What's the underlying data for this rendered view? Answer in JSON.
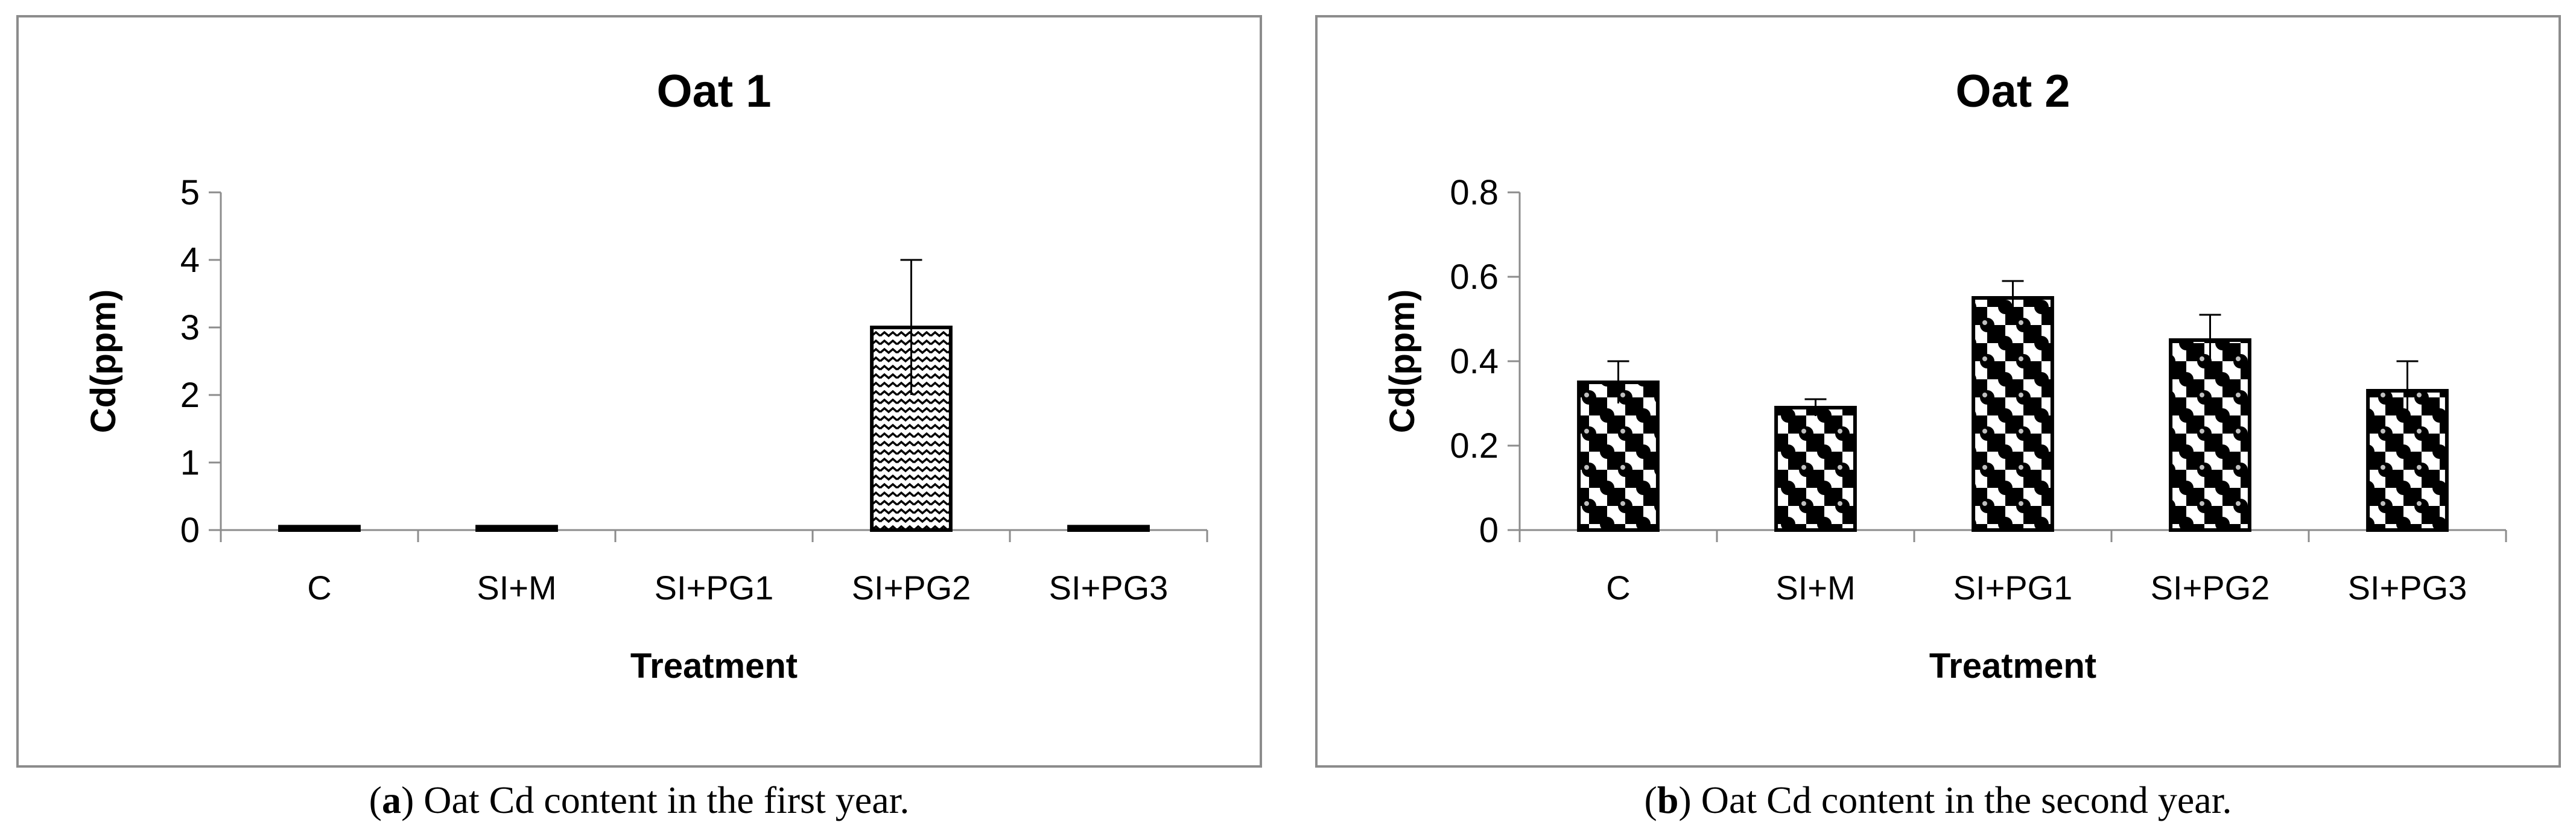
{
  "chart_data": [
    {
      "type": "bar",
      "title": "Oat 1",
      "xlabel": "Treatment",
      "ylabel": "Cd(ppm)",
      "categories": [
        "C",
        "SI+M",
        "SI+PG1",
        "SI+PG2",
        "SI+PG3"
      ],
      "values": [
        0.05,
        0.05,
        0,
        3.0,
        0.05
      ],
      "errors": [
        0,
        0,
        0,
        1.0,
        0
      ],
      "ylim": [
        0,
        5
      ],
      "yticks": [
        0,
        1,
        2,
        3,
        4,
        5
      ],
      "ytick_labels": [
        "0",
        "1",
        "2",
        "3",
        "4",
        "5"
      ],
      "pattern": "zigzag",
      "grid": false
    },
    {
      "type": "bar",
      "title": "Oat 2",
      "xlabel": "Treatment",
      "ylabel": "Cd(ppm)",
      "categories": [
        "C",
        "SI+M",
        "SI+PG1",
        "SI+PG2",
        "SI+PG3"
      ],
      "values": [
        0.35,
        0.29,
        0.55,
        0.45,
        0.33
      ],
      "errors": [
        0.05,
        0.02,
        0.04,
        0.06,
        0.07
      ],
      "ylim": [
        0,
        0.8
      ],
      "yticks": [
        0,
        0.2,
        0.4,
        0.6,
        0.8
      ],
      "ytick_labels": [
        "0",
        "0.2",
        "0.4",
        "0.6",
        "0.8"
      ],
      "pattern": "sphere",
      "grid": false
    }
  ],
  "captions": [
    {
      "letter": "a",
      "text": " Oat Cd content in the first year."
    },
    {
      "letter": "b",
      "text": " Oat Cd content in the second year."
    }
  ],
  "colors": {
    "bar_outline": "#000000",
    "axis": "#8c8c8c",
    "fill_dark": "#000000",
    "fill_light": "#ffffff"
  }
}
